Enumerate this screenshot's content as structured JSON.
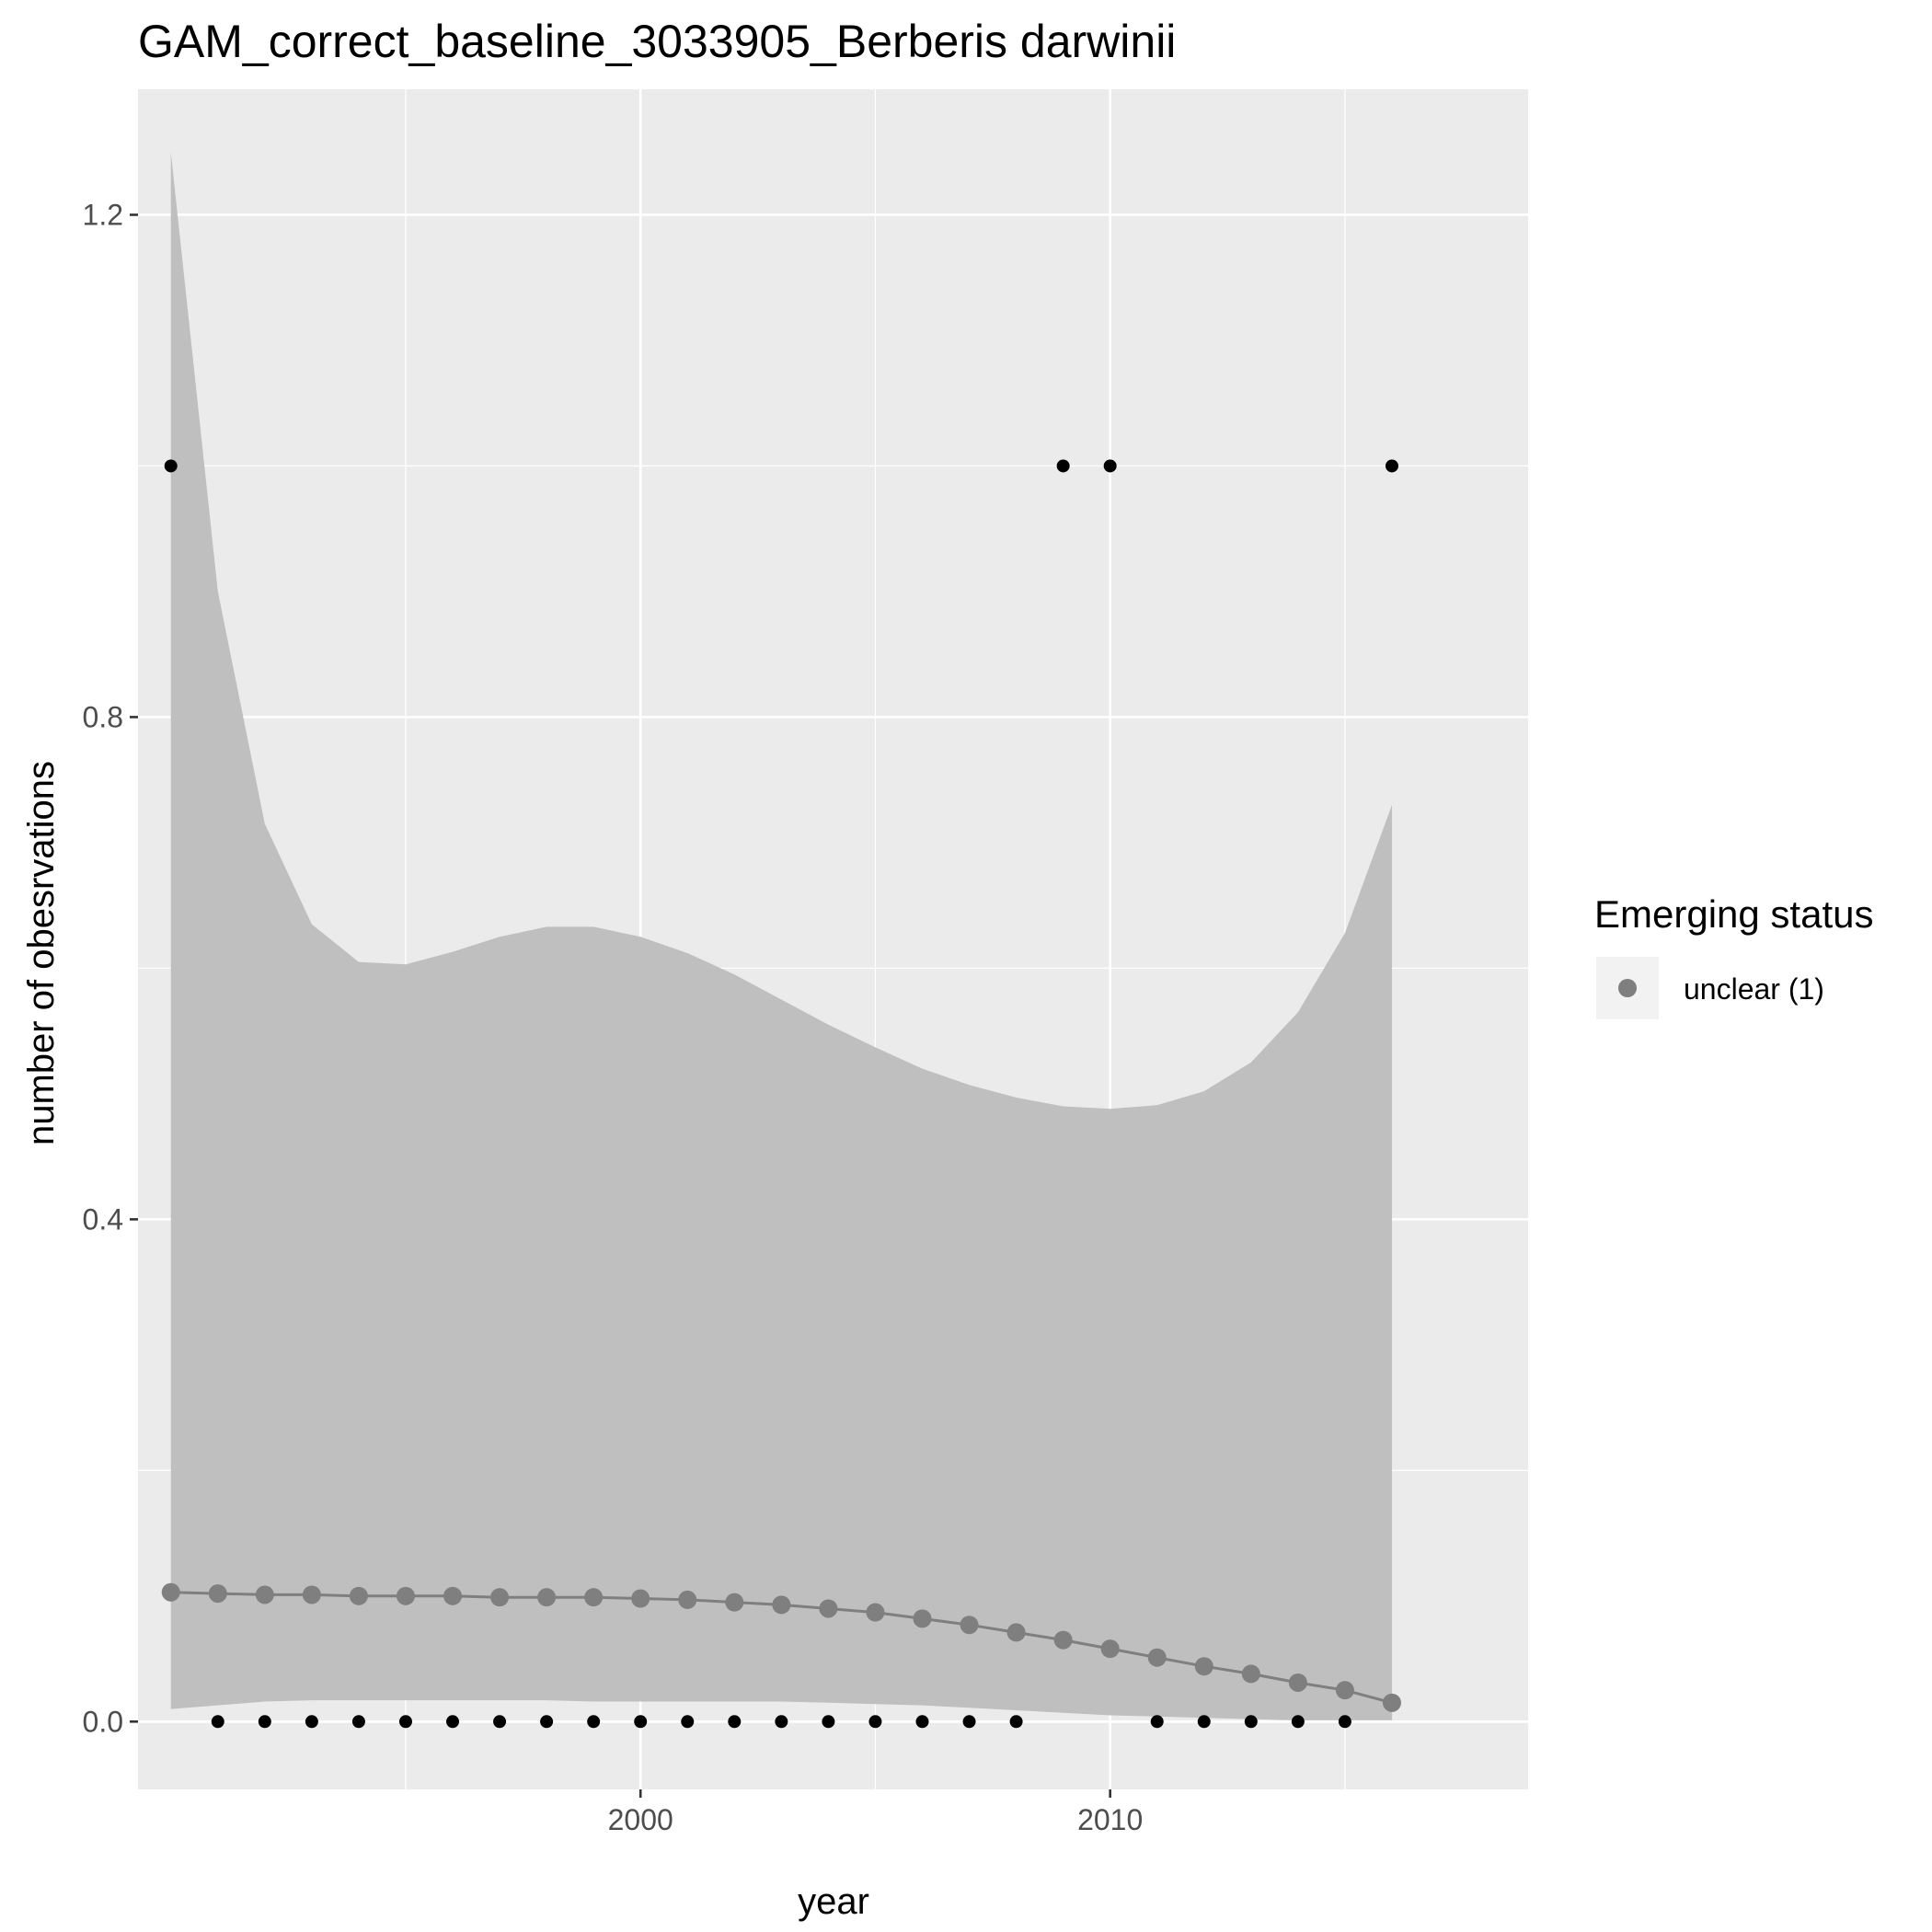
{
  "chart_data": {
    "type": "line",
    "title": "GAM_correct_baseline_3033905_Berberis darwinii",
    "xlabel": "year",
    "ylabel": "number of obesrvations",
    "xlim": [
      1989.3,
      2018.9
    ],
    "ylim": [
      -0.054,
      1.3
    ],
    "x_ticks": [
      2000,
      2010
    ],
    "x_tick_labels": [
      "2000",
      "2010"
    ],
    "y_ticks": [
      0.0,
      0.4,
      0.8,
      1.2
    ],
    "y_tick_labels": [
      "0.0",
      "0.4",
      "0.8",
      "1.2"
    ],
    "grid": true,
    "legend": {
      "title": "Emerging status",
      "position": "right",
      "entries": [
        {
          "label": "unclear (1)",
          "color": "#7f7f7f"
        }
      ]
    },
    "colors": {
      "panel": "#ebebeb",
      "grid": "#ffffff",
      "ribbon": "#bfbfbf",
      "fit": "#7f7f7f",
      "observed": "#000000"
    },
    "x": [
      1990,
      1991,
      1992,
      1993,
      1994,
      1995,
      1996,
      1997,
      1998,
      1999,
      2000,
      2001,
      2002,
      2003,
      2004,
      2005,
      2006,
      2007,
      2008,
      2009,
      2010,
      2011,
      2012,
      2013,
      2014,
      2015,
      2016
    ],
    "series": [
      {
        "name": "unclear (1)",
        "role": "fit",
        "values": [
          0.103,
          0.102,
          0.101,
          0.101,
          0.1,
          0.1,
          0.1,
          0.099,
          0.099,
          0.099,
          0.098,
          0.097,
          0.095,
          0.093,
          0.09,
          0.087,
          0.082,
          0.077,
          0.071,
          0.065,
          0.058,
          0.051,
          0.044,
          0.038,
          0.031,
          0.025,
          0.015
        ]
      },
      {
        "role": "ribbon_upper",
        "values": [
          1.25,
          0.9,
          0.715,
          0.635,
          0.605,
          0.603,
          0.613,
          0.625,
          0.633,
          0.633,
          0.625,
          0.612,
          0.595,
          0.575,
          0.555,
          0.537,
          0.52,
          0.507,
          0.497,
          0.49,
          0.488,
          0.491,
          0.502,
          0.525,
          0.565,
          0.628,
          0.73
        ]
      },
      {
        "role": "ribbon_lower",
        "values": [
          0.01,
          0.013,
          0.016,
          0.017,
          0.017,
          0.017,
          0.017,
          0.017,
          0.017,
          0.016,
          0.016,
          0.016,
          0.016,
          0.016,
          0.015,
          0.014,
          0.013,
          0.011,
          0.009,
          0.007,
          0.005,
          0.004,
          0.003,
          0.002,
          0.001,
          0.001,
          0.001
        ]
      },
      {
        "role": "observed",
        "values": [
          1,
          0,
          0,
          0,
          0,
          0,
          0,
          0,
          0,
          0,
          0,
          0,
          0,
          0,
          0,
          0,
          0,
          0,
          0,
          1,
          1,
          0,
          0,
          0,
          0,
          0,
          1
        ]
      }
    ]
  }
}
